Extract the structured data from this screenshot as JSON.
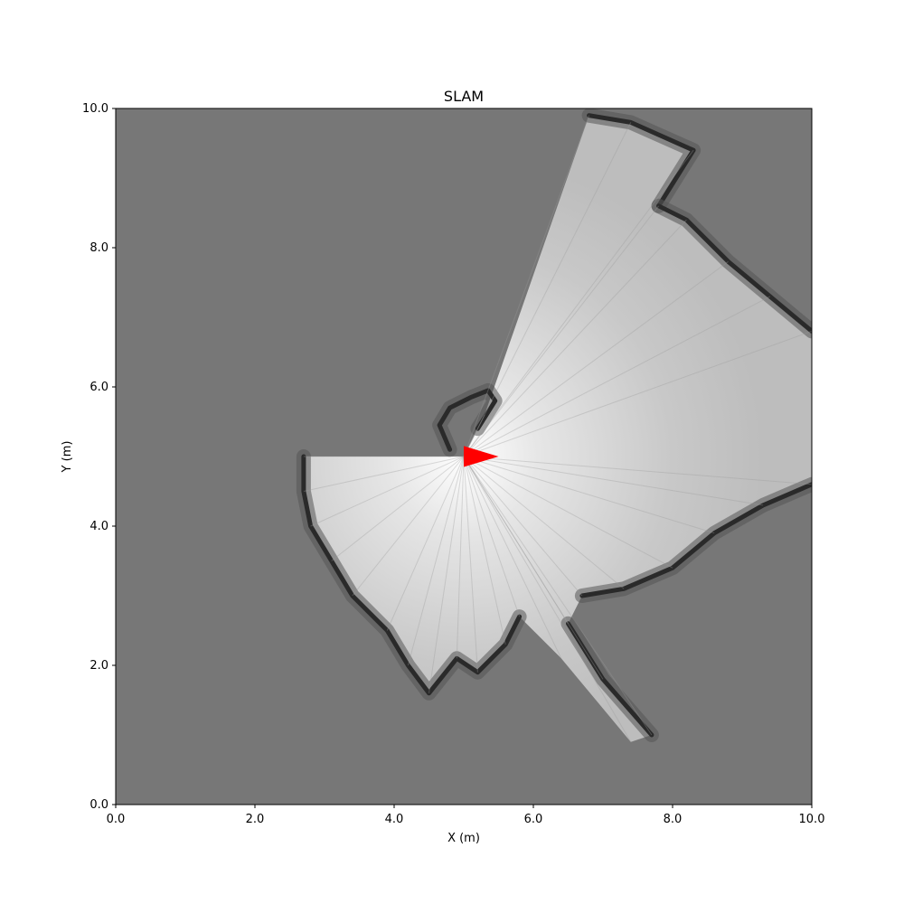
{
  "chart_data": {
    "type": "heatmap",
    "title": "SLAM",
    "xlabel": "X (m)",
    "ylabel": "Y (m)",
    "xlim": [
      0,
      10
    ],
    "ylim": [
      0,
      10
    ],
    "xticks": [
      0,
      2,
      4,
      6,
      8,
      10
    ],
    "yticks": [
      0,
      2,
      4,
      6,
      8,
      10
    ],
    "xtick_labels": [
      "0.0",
      "2.0",
      "4.0",
      "6.0",
      "8.0",
      "10.0"
    ],
    "ytick_labels": [
      "0.0",
      "2.0",
      "4.0",
      "6.0",
      "8.0",
      "10.0"
    ],
    "grid": false,
    "colors": {
      "unknown": "#777777",
      "free": "#e8e8e8",
      "free_center": "#ffffff",
      "obstacle": "#2a2a2a",
      "robot": "#ff0000"
    },
    "free_region": [
      [
        5.0,
        5.0
      ],
      [
        5.3,
        5.6
      ],
      [
        6.8,
        9.9
      ],
      [
        7.4,
        9.8
      ],
      [
        8.3,
        9.4
      ],
      [
        7.8,
        8.6
      ],
      [
        8.2,
        8.4
      ],
      [
        8.8,
        7.8
      ],
      [
        9.4,
        7.3
      ],
      [
        10.0,
        6.8
      ],
      [
        10.0,
        4.6
      ],
      [
        9.3,
        4.3
      ],
      [
        8.6,
        3.9
      ],
      [
        8.0,
        3.4
      ],
      [
        7.3,
        3.1
      ],
      [
        6.7,
        3.0
      ],
      [
        6.5,
        2.6
      ],
      [
        7.0,
        1.8
      ],
      [
        7.7,
        1.0
      ],
      [
        7.4,
        0.9
      ],
      [
        6.4,
        2.1
      ],
      [
        5.8,
        2.7
      ],
      [
        5.6,
        2.3
      ],
      [
        5.2,
        1.9
      ],
      [
        4.9,
        2.1
      ],
      [
        4.5,
        1.6
      ],
      [
        4.2,
        2.0
      ],
      [
        3.9,
        2.5
      ],
      [
        3.4,
        3.0
      ],
      [
        3.1,
        3.5
      ],
      [
        2.8,
        4.0
      ],
      [
        2.7,
        4.5
      ],
      [
        2.7,
        5.0
      ],
      [
        5.0,
        5.0
      ]
    ],
    "wall_segments": [
      [
        [
          6.8,
          9.9
        ],
        [
          7.4,
          9.8
        ],
        [
          8.3,
          9.4
        ],
        [
          7.8,
          8.6
        ]
      ],
      [
        [
          7.8,
          8.6
        ],
        [
          8.2,
          8.4
        ],
        [
          8.8,
          7.8
        ],
        [
          9.4,
          7.3
        ],
        [
          10.0,
          6.8
        ]
      ],
      [
        [
          10.0,
          4.6
        ],
        [
          9.3,
          4.3
        ],
        [
          8.6,
          3.9
        ],
        [
          8.0,
          3.4
        ],
        [
          7.3,
          3.1
        ],
        [
          6.7,
          3.0
        ]
      ],
      [
        [
          6.5,
          2.6
        ],
        [
          7.0,
          1.8
        ],
        [
          7.7,
          1.0
        ]
      ],
      [
        [
          5.8,
          2.7
        ],
        [
          5.6,
          2.3
        ],
        [
          5.2,
          1.9
        ],
        [
          4.9,
          2.1
        ],
        [
          4.5,
          1.6
        ],
        [
          4.2,
          2.0
        ],
        [
          3.9,
          2.5
        ],
        [
          3.4,
          3.0
        ],
        [
          3.1,
          3.5
        ],
        [
          2.8,
          4.0
        ],
        [
          2.7,
          4.5
        ],
        [
          2.7,
          5.0
        ]
      ],
      [
        [
          4.8,
          5.1
        ],
        [
          4.65,
          5.45
        ],
        [
          4.8,
          5.7
        ],
        [
          5.1,
          5.85
        ],
        [
          5.35,
          5.95
        ],
        [
          5.45,
          5.8
        ],
        [
          5.2,
          5.4
        ]
      ]
    ],
    "robot": {
      "x": 5.0,
      "y": 5.0,
      "heading_deg": 0,
      "color": "#ff0000"
    }
  }
}
